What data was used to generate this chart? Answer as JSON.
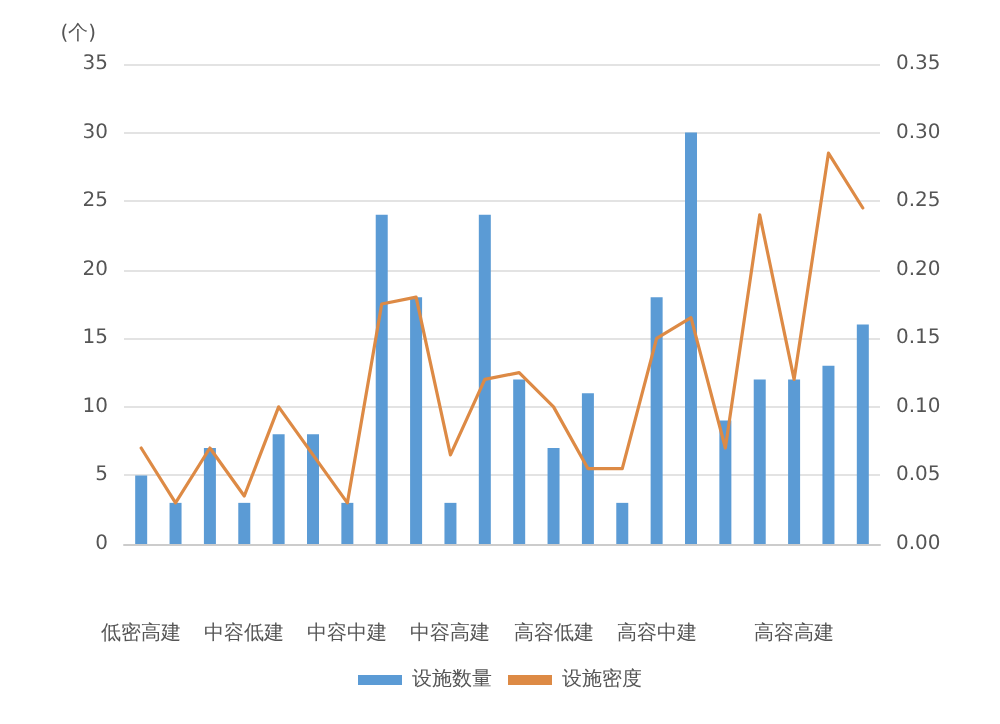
{
  "chart_data": {
    "type": "bar",
    "ylabel": "(个)",
    "categories": [
      "低密高建",
      null,
      null,
      "中容低建",
      null,
      null,
      "中容中建",
      null,
      null,
      "中容高建",
      null,
      null,
      "高容低建",
      null,
      null,
      "高容中建",
      null,
      null,
      null,
      "高容高建",
      null,
      null
    ],
    "series": [
      {
        "name": "设施数量",
        "color": "#5b9bd5",
        "values": [
          5,
          3,
          7,
          3,
          8,
          8,
          3,
          24,
          18,
          3,
          24,
          12,
          7,
          11,
          3,
          18,
          30,
          9,
          12,
          12,
          13,
          16
        ]
      },
      {
        "name": "设施密度",
        "type": "line",
        "axis": "y2",
        "color": "#dd8a45",
        "values": [
          0.07,
          0.03,
          0.07,
          0.035,
          0.1,
          0.065,
          0.03,
          0.175,
          0.18,
          0.065,
          0.12,
          0.125,
          0.1,
          0.055,
          0.055,
          0.15,
          0.165,
          0.07,
          0.24,
          0.12,
          0.285,
          0.245
        ]
      }
    ],
    "ylim": [
      0,
      35
    ],
    "yticks": [
      0,
      5,
      10,
      15,
      20,
      25,
      30,
      35
    ],
    "y2lim": [
      0,
      0.35
    ],
    "y2ticks": [
      {
        "value": 0,
        "label": "0.00"
      },
      {
        "value": 0.05,
        "label": "0.05"
      },
      {
        "value": 0.1,
        "label": "0.10"
      },
      {
        "value": 0.15,
        "label": "0.15"
      },
      {
        "value": 0.2,
        "label": "0.20"
      },
      {
        "value": 0.25,
        "label": "0.25"
      },
      {
        "value": 0.3,
        "label": "0.30"
      },
      {
        "value": 0.35,
        "label": "0.35"
      }
    ],
    "grid": "y",
    "legend": "bottom",
    "marker": "none"
  }
}
